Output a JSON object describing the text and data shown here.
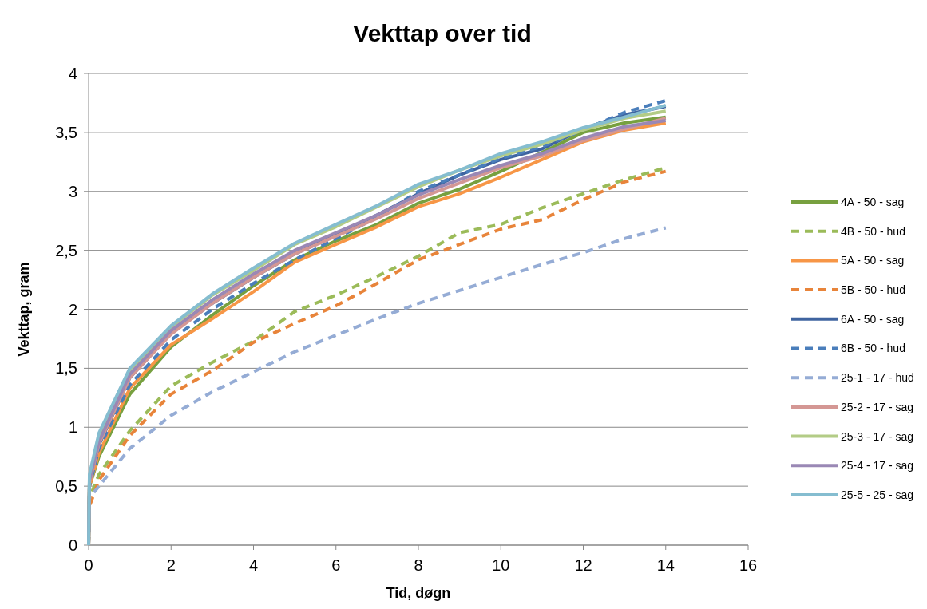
{
  "chart_data": {
    "type": "line",
    "title": "Vekttap over tid",
    "xlabel": "Tid, døgn",
    "ylabel": "Vekttap, gram",
    "x": [
      0,
      0.02,
      0.25,
      1,
      2,
      3,
      4,
      5,
      6,
      7,
      8,
      9,
      10,
      11,
      12,
      13,
      14
    ],
    "xlim": [
      0,
      16
    ],
    "xticks": [
      0,
      2,
      4,
      6,
      8,
      10,
      12,
      14,
      16
    ],
    "ylim": [
      0,
      4
    ],
    "yticks": [
      0,
      {
        "value": 0.5,
        "label": "0,5"
      },
      1,
      {
        "value": 1.5,
        "label": "1,5"
      },
      2,
      {
        "value": 2.5,
        "label": "2,5"
      },
      3,
      {
        "value": 3.5,
        "label": "3,5"
      },
      4
    ],
    "grid": "y",
    "legend": "right",
    "marker": "none",
    "series": [
      {
        "name": "4A - 50 - sag",
        "color": "#77a03f",
        "line_style": "solid",
        "values": [
          0,
          0.5,
          0.75,
          1.28,
          1.68,
          1.95,
          2.2,
          2.42,
          2.58,
          2.72,
          2.9,
          3.02,
          3.17,
          3.33,
          3.5,
          3.58,
          3.63
        ]
      },
      {
        "name": "4B - 50 - hud",
        "color": "#9bbb59",
        "line_style": "dashed",
        "values": [
          0,
          0.4,
          0.6,
          0.97,
          1.35,
          1.55,
          1.73,
          1.98,
          2.12,
          2.28,
          2.45,
          2.65,
          2.72,
          2.86,
          2.98,
          3.1,
          3.2
        ]
      },
      {
        "name": "5A - 50 - sag",
        "color": "#f79646",
        "line_style": "solid",
        "values": [
          0,
          0.5,
          0.78,
          1.33,
          1.7,
          1.92,
          2.15,
          2.4,
          2.55,
          2.7,
          2.87,
          2.98,
          3.12,
          3.27,
          3.42,
          3.52,
          3.58
        ]
      },
      {
        "name": "5B - 50 - hud",
        "color": "#e8843a",
        "line_style": "dashed",
        "values": [
          0,
          0.33,
          0.55,
          0.93,
          1.28,
          1.48,
          1.72,
          1.88,
          2.03,
          2.22,
          2.42,
          2.55,
          2.68,
          2.76,
          2.93,
          3.08,
          3.17
        ]
      },
      {
        "name": "6A - 50 - sag",
        "color": "#3f64a0",
        "line_style": "solid",
        "values": [
          0,
          0.55,
          0.85,
          1.42,
          1.8,
          2.05,
          2.27,
          2.47,
          2.63,
          2.8,
          2.98,
          3.14,
          3.27,
          3.36,
          3.53,
          3.65,
          3.72
        ]
      },
      {
        "name": "6B - 50 - hud",
        "color": "#4a7ebb",
        "line_style": "dashed",
        "values": [
          0,
          0.5,
          0.82,
          1.36,
          1.74,
          2.0,
          2.22,
          2.42,
          2.6,
          2.78,
          3.0,
          3.14,
          3.28,
          3.38,
          3.52,
          3.67,
          3.77
        ]
      },
      {
        "name": "25-1 - 17 - hud",
        "color": "#95acd5",
        "line_style": "dashed",
        "values": [
          0,
          0.4,
          0.5,
          0.82,
          1.1,
          1.3,
          1.47,
          1.64,
          1.78,
          1.92,
          2.05,
          2.16,
          2.27,
          2.38,
          2.48,
          2.6,
          2.69
        ]
      },
      {
        "name": "25-2 - 17 - sag",
        "color": "#d49794",
        "line_style": "solid",
        "values": [
          0,
          0.53,
          0.86,
          1.42,
          1.79,
          2.05,
          2.27,
          2.47,
          2.62,
          2.77,
          2.94,
          3.07,
          3.2,
          3.3,
          3.43,
          3.53,
          3.62
        ]
      },
      {
        "name": "25-3 - 17 - sag",
        "color": "#b3cc86",
        "line_style": "solid",
        "values": [
          0,
          0.58,
          0.92,
          1.48,
          1.85,
          2.12,
          2.33,
          2.55,
          2.7,
          2.87,
          3.04,
          3.18,
          3.3,
          3.4,
          3.52,
          3.62,
          3.68
        ]
      },
      {
        "name": "25-4 - 17 - sag",
        "color": "#9a88b5",
        "line_style": "solid",
        "values": [
          0,
          0.55,
          0.88,
          1.45,
          1.82,
          2.08,
          2.3,
          2.5,
          2.65,
          2.8,
          2.97,
          3.1,
          3.22,
          3.32,
          3.45,
          3.55,
          3.6
        ]
      },
      {
        "name": "25-5 - 25 - sag",
        "color": "#85bdd0",
        "line_style": "solid",
        "values": [
          0,
          0.6,
          0.95,
          1.5,
          1.86,
          2.13,
          2.35,
          2.56,
          2.72,
          2.88,
          3.06,
          3.18,
          3.32,
          3.42,
          3.54,
          3.63,
          3.73
        ]
      }
    ]
  }
}
